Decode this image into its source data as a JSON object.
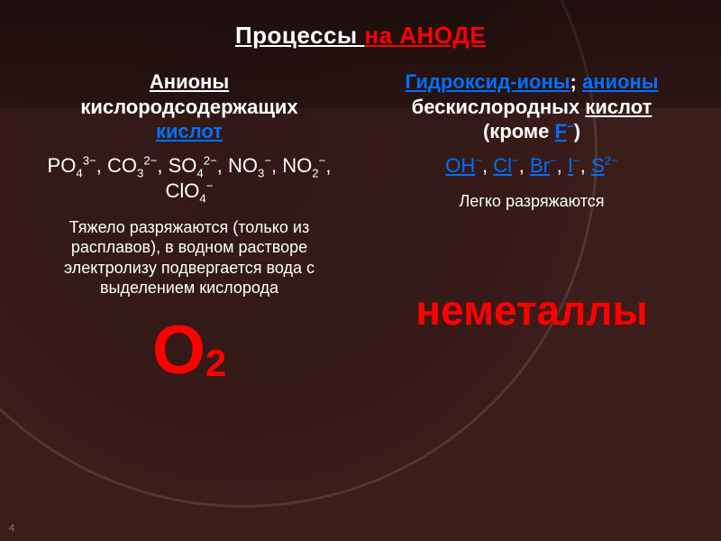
{
  "slide": {
    "page_number": "4",
    "background_color": "#3b1d1a",
    "accent_red": "#ff0000",
    "accent_blue": "#0070ff",
    "body_text_color": "#ffffff"
  },
  "title": {
    "part1": "Процессы ",
    "part2": "на АНОДЕ"
  },
  "left": {
    "h_line1": "Анионы",
    "h_line2_a": "кислородсодержащих",
    "h_line2_b": "кислот",
    "formula_html": "PO<sub>4</sub><sup>3−</sup>, CO<sub>3</sub><sup>2−</sup>, SO<sub>4</sub><sup>2−</sup>, NO<sub>3</sub><sup>−</sup>, NO<sub>2</sub><sup>−</sup>, ClO<sub>4</sub><sup>−</sup>",
    "descr": "Тяжело разряжаются (только из расплавов), в водном растворе электролизу подвергается вода с выделением кислорода",
    "result_html": "O<sub>2</sub>"
  },
  "right": {
    "h1_a": "Гидроксид-ионы",
    "h1_sep": "; ",
    "h1_b": "анионы",
    "h2_a": "бескислородных ",
    "h2_b": "кислот",
    "h3_a": "(кроме ",
    "h3_f": "F",
    "h3_sup": "−",
    "h3_b": ")",
    "formula_html": "<span class=\"blue\"><u>OH</u><sup>−</sup></span>, <span class=\"blue\"><u>Cl</u><sup>−</sup></span>, <span class=\"blue\"><u>Br</u><sup>−</sup></span>, <span class=\"blue\"><u>I</u><sup>−</sup></span>, <span class=\"blue\"><u>S</u><sup>2−</sup></span>",
    "descr": "Легко разряжаются",
    "result": "неметаллы"
  }
}
